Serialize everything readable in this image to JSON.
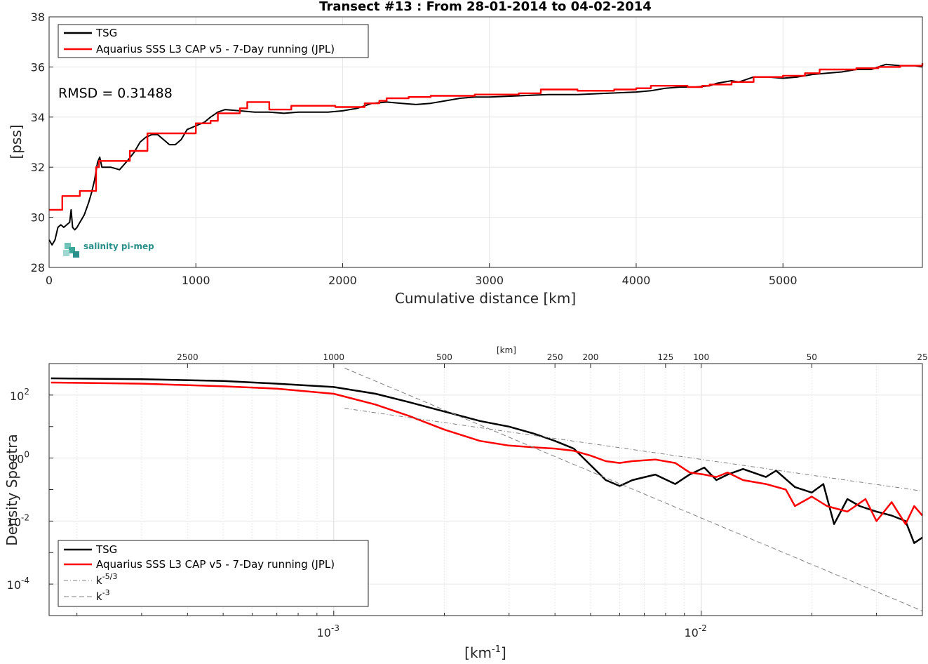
{
  "chart_data": [
    {
      "type": "line",
      "title": "Transect #13 : From 28-01-2014 to 04-02-2014",
      "xlabel": "Cumulative distance [km]",
      "ylabel": "[pss]",
      "xlim": [
        0,
        5950
      ],
      "ylim": [
        28,
        38
      ],
      "xticks": [
        0,
        1000,
        2000,
        3000,
        4000,
        5000
      ],
      "yticks": [
        28,
        30,
        32,
        34,
        36,
        38
      ],
      "grid": true,
      "legend_position": "top-left",
      "annotation": "RMSD = 0.31488",
      "logo": "salinity pi-mep",
      "series": [
        {
          "name": "TSG",
          "color": "#000000",
          "style": "solid",
          "x": [
            0,
            20,
            40,
            60,
            80,
            100,
            120,
            140,
            150,
            160,
            175,
            190,
            210,
            240,
            270,
            290,
            310,
            330,
            345,
            360,
            380,
            420,
            480,
            540,
            580,
            620,
            660,
            700,
            740,
            780,
            820,
            860,
            900,
            940,
            980,
            1020,
            1060,
            1100,
            1150,
            1200,
            1300,
            1400,
            1500,
            1600,
            1700,
            1800,
            1900,
            2000,
            2100,
            2200,
            2300,
            2400,
            2500,
            2600,
            2700,
            2800,
            2900,
            3000,
            3200,
            3400,
            3600,
            3800,
            4000,
            4100,
            4200,
            4300,
            4400,
            4500,
            4550,
            4650,
            4700,
            4800,
            4900,
            5000,
            5100,
            5200,
            5300,
            5400,
            5500,
            5600,
            5700,
            5800,
            5900,
            5950
          ],
          "y": [
            29.1,
            28.9,
            29.1,
            29.6,
            29.7,
            29.6,
            29.7,
            29.8,
            30.3,
            29.6,
            29.5,
            29.6,
            29.8,
            30.1,
            30.6,
            31.0,
            31.5,
            32.2,
            32.4,
            32.0,
            32.0,
            32.0,
            31.9,
            32.3,
            32.6,
            33.0,
            33.2,
            33.3,
            33.3,
            33.1,
            32.9,
            32.9,
            33.1,
            33.5,
            33.6,
            33.7,
            33.8,
            34.0,
            34.2,
            34.3,
            34.25,
            34.2,
            34.2,
            34.15,
            34.2,
            34.2,
            34.2,
            34.25,
            34.35,
            34.55,
            34.6,
            34.55,
            34.5,
            34.55,
            34.65,
            34.75,
            34.8,
            34.8,
            34.85,
            34.9,
            34.9,
            34.95,
            35.0,
            35.05,
            35.15,
            35.2,
            35.2,
            35.25,
            35.35,
            35.45,
            35.4,
            35.6,
            35.6,
            35.55,
            35.6,
            35.7,
            35.75,
            35.8,
            35.9,
            35.9,
            36.1,
            36.05,
            36.05,
            36.0
          ]
        },
        {
          "name": "Aquarius SSS L3 CAP v5 - 7-Day running (JPL)",
          "color": "#ff0000",
          "style": "step",
          "x": [
            0,
            90,
            210,
            320,
            340,
            550,
            670,
            1000,
            1100,
            1150,
            1300,
            1350,
            1500,
            1650,
            1950,
            2100,
            2150,
            2250,
            2300,
            2450,
            2600,
            2900,
            3200,
            3350,
            3600,
            3850,
            4000,
            4100,
            4350,
            4450,
            4500,
            4650,
            4800,
            5000,
            5150,
            5250,
            5500,
            5650,
            5800,
            5950
          ],
          "y": [
            30.3,
            30.85,
            31.05,
            32.0,
            32.25,
            32.65,
            33.35,
            33.75,
            33.85,
            34.15,
            34.35,
            34.6,
            34.3,
            34.45,
            34.4,
            34.4,
            34.55,
            34.65,
            34.75,
            34.8,
            34.85,
            34.9,
            34.95,
            35.1,
            35.05,
            35.1,
            35.15,
            35.25,
            35.2,
            35.25,
            35.3,
            35.4,
            35.6,
            35.65,
            35.75,
            35.9,
            35.95,
            36.0,
            36.05,
            36.15
          ]
        }
      ]
    },
    {
      "type": "line",
      "xlabel_text": "[km",
      "xlabel_sup": "-1",
      "xlabel_end": "]",
      "ylabel": "Density Spectra",
      "xscale": "log",
      "yscale": "log",
      "xlim": [
        0.000168,
        0.04
      ],
      "ylim": [
        1e-05,
        1000
      ],
      "xticks_labeled": [
        "10",
        "10"
      ],
      "xticks_sup": [
        "-3",
        "-2"
      ],
      "yticks_base": [
        "10",
        "10",
        "10",
        "10"
      ],
      "yticks_sup": [
        "2",
        "0",
        "-2",
        "-4"
      ],
      "top_axis_label": "[km]",
      "top_axis_ticks": [
        "2500",
        "1000",
        "500",
        "250",
        "200",
        "125",
        "100",
        "50",
        "25"
      ],
      "grid": true,
      "legend_position": "bottom-left",
      "series": [
        {
          "name": "TSG",
          "color": "#000000",
          "style": "solid",
          "x": [
            0.00017,
            0.0003,
            0.0005,
            0.0007,
            0.001,
            0.0013,
            0.0016,
            0.002,
            0.0025,
            0.003,
            0.0035,
            0.004,
            0.0045,
            0.005,
            0.0055,
            0.006,
            0.0065,
            0.0075,
            0.0085,
            0.0093,
            0.0102,
            0.011,
            0.0118,
            0.013,
            0.015,
            0.016,
            0.018,
            0.02,
            0.0215,
            0.023,
            0.025,
            0.027,
            0.03,
            0.033,
            0.036,
            0.038,
            0.04
          ],
          "y": [
            340,
            320,
            280,
            230,
            180,
            110,
            60,
            30,
            15,
            10,
            6,
            3.5,
            2,
            0.6,
            0.2,
            0.13,
            0.2,
            0.3,
            0.15,
            0.3,
            0.5,
            0.2,
            0.3,
            0.45,
            0.25,
            0.4,
            0.12,
            0.08,
            0.15,
            0.008,
            0.05,
            0.03,
            0.02,
            0.015,
            0.01,
            0.002,
            0.003
          ]
        },
        {
          "name": "Aquarius SSS L3 CAP v5 - 7-Day running (JPL)",
          "color": "#ff0000",
          "style": "solid",
          "x": [
            0.00017,
            0.0003,
            0.0005,
            0.0007,
            0.001,
            0.0013,
            0.0016,
            0.002,
            0.0025,
            0.003,
            0.0035,
            0.004,
            0.0045,
            0.005,
            0.0055,
            0.006,
            0.0065,
            0.0075,
            0.0085,
            0.0093,
            0.0102,
            0.011,
            0.0118,
            0.013,
            0.015,
            0.017,
            0.018,
            0.02,
            0.022,
            0.025,
            0.028,
            0.03,
            0.033,
            0.036,
            0.038,
            0.04
          ],
          "y": [
            250,
            230,
            190,
            160,
            110,
            50,
            22,
            8,
            3.5,
            2.5,
            2.2,
            2,
            1.7,
            1.2,
            0.8,
            0.7,
            0.8,
            0.9,
            0.7,
            0.35,
            0.3,
            0.25,
            0.35,
            0.2,
            0.15,
            0.1,
            0.03,
            0.06,
            0.03,
            0.02,
            0.05,
            0.01,
            0.04,
            0.008,
            0.03,
            0.015
          ]
        },
        {
          "name": "k-5/3",
          "color": "#808080",
          "style": "dashdot",
          "x": [
            0.00107,
            0.04
          ],
          "y": [
            38,
            0.09
          ]
        },
        {
          "name": "k-3",
          "color": "#808080",
          "style": "dashed",
          "x": [
            0.00107,
            0.04
          ],
          "y": [
            720,
            1.4e-05
          ]
        }
      ],
      "legend_entries": [
        {
          "name": "TSG",
          "base": "",
          "sup": ""
        },
        {
          "name": "Aquarius SSS L3 CAP v5 - 7-Day running (JPL)",
          "base": "",
          "sup": ""
        },
        {
          "name": "",
          "base": "k",
          "sup": "-5/3"
        },
        {
          "name": "",
          "base": "k",
          "sup": "-3"
        }
      ]
    }
  ]
}
